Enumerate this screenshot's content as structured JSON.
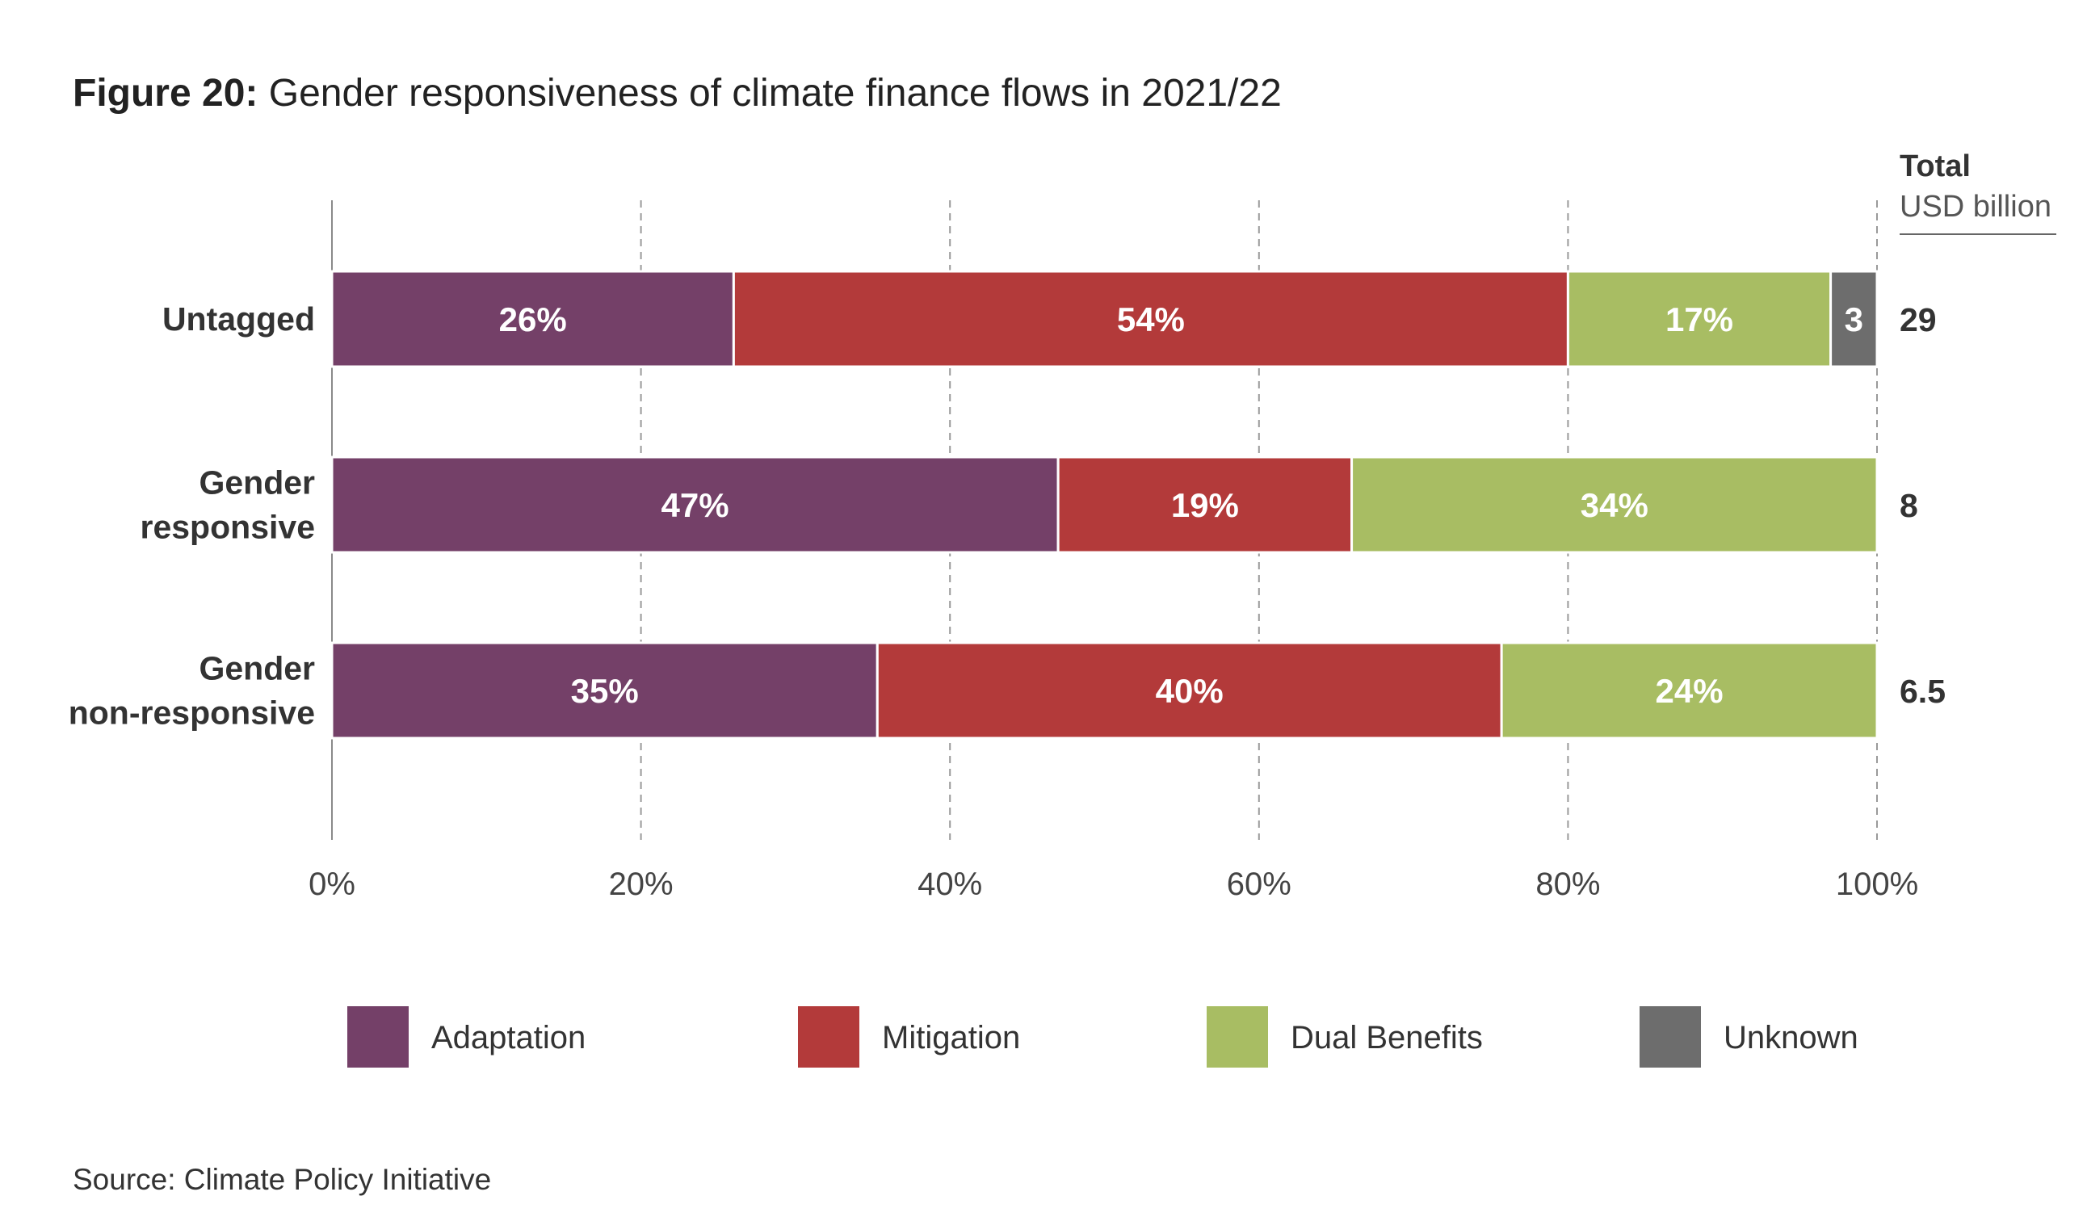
{
  "figure": {
    "label": "Figure 20:",
    "title": "Gender responsiveness of climate finance flows in 2021/22",
    "source": "Source: Climate Policy Initiative"
  },
  "chart_data": {
    "type": "bar",
    "orientation": "horizontal",
    "stacked": true,
    "categories": [
      "Untagged",
      "Gender responsive",
      "Gender non-responsive"
    ],
    "category_lines": [
      [
        "Untagged"
      ],
      [
        "Gender",
        "responsive"
      ],
      [
        "Gender",
        "non-responsive"
      ]
    ],
    "series": [
      {
        "name": "Adaptation",
        "color": "#744068",
        "values": [
          26,
          47,
          35.3
        ],
        "labels": [
          "26%",
          "47%",
          "35%"
        ]
      },
      {
        "name": "Mitigation",
        "color": "#B33A3A",
        "values": [
          54,
          19,
          40.4
        ],
        "labels": [
          "54%",
          "19%",
          "40%"
        ]
      },
      {
        "name": "Dual Benefits",
        "color": "#A8BD63",
        "values": [
          17,
          34,
          24.3
        ],
        "labels": [
          "17%",
          "34%",
          "24%"
        ]
      },
      {
        "name": "Unknown",
        "color": "#6D6D6D",
        "values": [
          3,
          0,
          0
        ],
        "labels": [
          "3",
          "",
          ""
        ]
      }
    ],
    "totals": {
      "header_line1": "Total",
      "header_line2": "USD billion",
      "values": [
        "29",
        "8",
        "6.5"
      ]
    },
    "xlim": [
      0,
      100
    ],
    "x_ticks": [
      0,
      20,
      40,
      60,
      80,
      100
    ],
    "x_tick_labels": [
      "0%",
      "20%",
      "40%",
      "60%",
      "80%",
      "100%"
    ],
    "grid": "vertical dashed",
    "legend_position": "bottom"
  }
}
